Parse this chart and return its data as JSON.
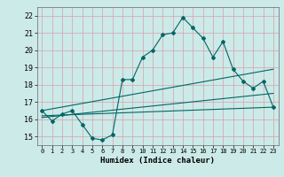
{
  "title": "",
  "xlabel": "Humidex (Indice chaleur)",
  "ylabel": "",
  "bg_color": "#cceae7",
  "grid_color": "#d4a0b0",
  "line_color": "#006666",
  "xlim": [
    -0.5,
    23.5
  ],
  "ylim": [
    14.5,
    22.5
  ],
  "xticks": [
    0,
    1,
    2,
    3,
    4,
    5,
    6,
    7,
    8,
    9,
    10,
    11,
    12,
    13,
    14,
    15,
    16,
    17,
    18,
    19,
    20,
    21,
    22,
    23
  ],
  "yticks": [
    15,
    16,
    17,
    18,
    19,
    20,
    21,
    22
  ],
  "main_x": [
    0,
    1,
    2,
    3,
    4,
    5,
    6,
    7,
    8,
    9,
    10,
    11,
    12,
    13,
    14,
    15,
    16,
    17,
    18,
    19,
    20,
    21,
    22,
    23
  ],
  "main_y": [
    16.5,
    15.9,
    16.3,
    16.5,
    15.7,
    14.9,
    14.8,
    15.1,
    18.3,
    18.3,
    19.6,
    20.0,
    20.9,
    21.0,
    21.9,
    21.3,
    20.7,
    19.6,
    20.5,
    18.9,
    18.2,
    17.8,
    18.2,
    16.7
  ],
  "line2_x": [
    0,
    23
  ],
  "line2_y": [
    16.5,
    18.9
  ],
  "line3_x": [
    0,
    23
  ],
  "line3_y": [
    16.2,
    16.7
  ],
  "line4_x": [
    0,
    23
  ],
  "line4_y": [
    16.1,
    17.5
  ]
}
